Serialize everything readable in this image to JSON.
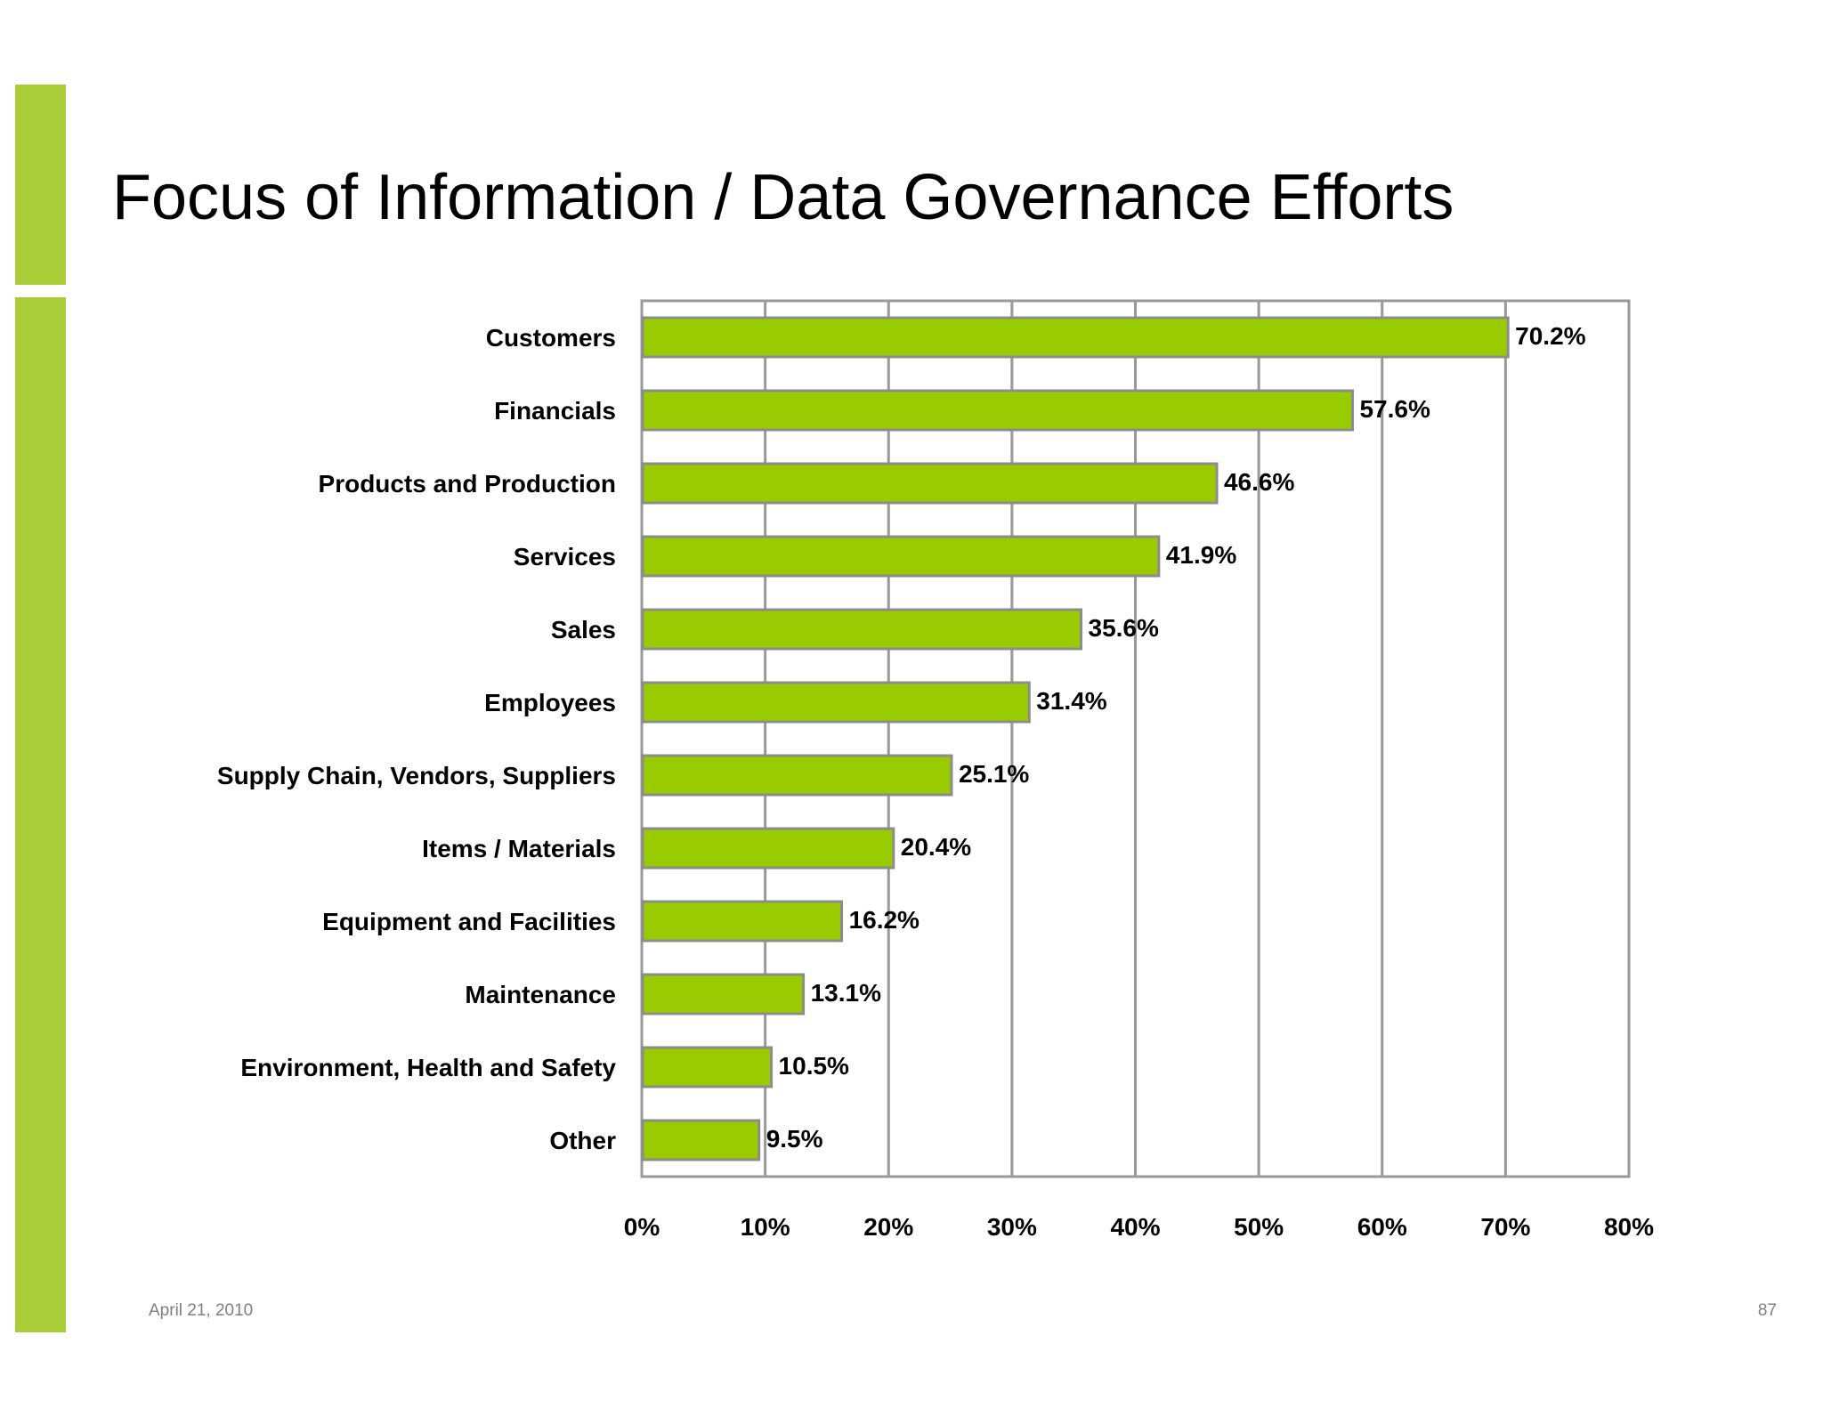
{
  "slide": {
    "title": "Focus of Information / Data Governance Efforts",
    "date": "April 21, 2010",
    "page_number": "87"
  },
  "colors": {
    "accent": "#a8cd36",
    "bar_fill": "#99cc00",
    "bar_border": "#8c8c8c",
    "grid": "#999999"
  },
  "chart_data": {
    "type": "bar",
    "orientation": "horizontal",
    "title": "",
    "xlabel": "",
    "ylabel": "",
    "categories": [
      "Customers",
      "Financials",
      "Products and Production",
      "Services",
      "Sales",
      "Employees",
      "Supply Chain, Vendors, Suppliers",
      "Items / Materials",
      "Equipment and Facilities",
      "Maintenance",
      "Environment, Health and Safety",
      "Other"
    ],
    "values": [
      70.2,
      57.6,
      46.6,
      41.9,
      35.6,
      31.4,
      25.1,
      20.4,
      16.2,
      13.1,
      10.5,
      9.5
    ],
    "data_labels": [
      "70.2%",
      "57.6%",
      "46.6%",
      "41.9%",
      "35.6%",
      "31.4%",
      "25.1%",
      "20.4%",
      "16.2%",
      "13.1%",
      "10.5%",
      "9.5%"
    ],
    "xlim": [
      0,
      80
    ],
    "x_ticks": [
      0,
      10,
      20,
      30,
      40,
      50,
      60,
      70,
      80
    ],
    "x_tick_labels": [
      "0%",
      "10%",
      "20%",
      "30%",
      "40%",
      "50%",
      "60%",
      "70%",
      "80%"
    ],
    "grid": true,
    "legend": "none"
  }
}
